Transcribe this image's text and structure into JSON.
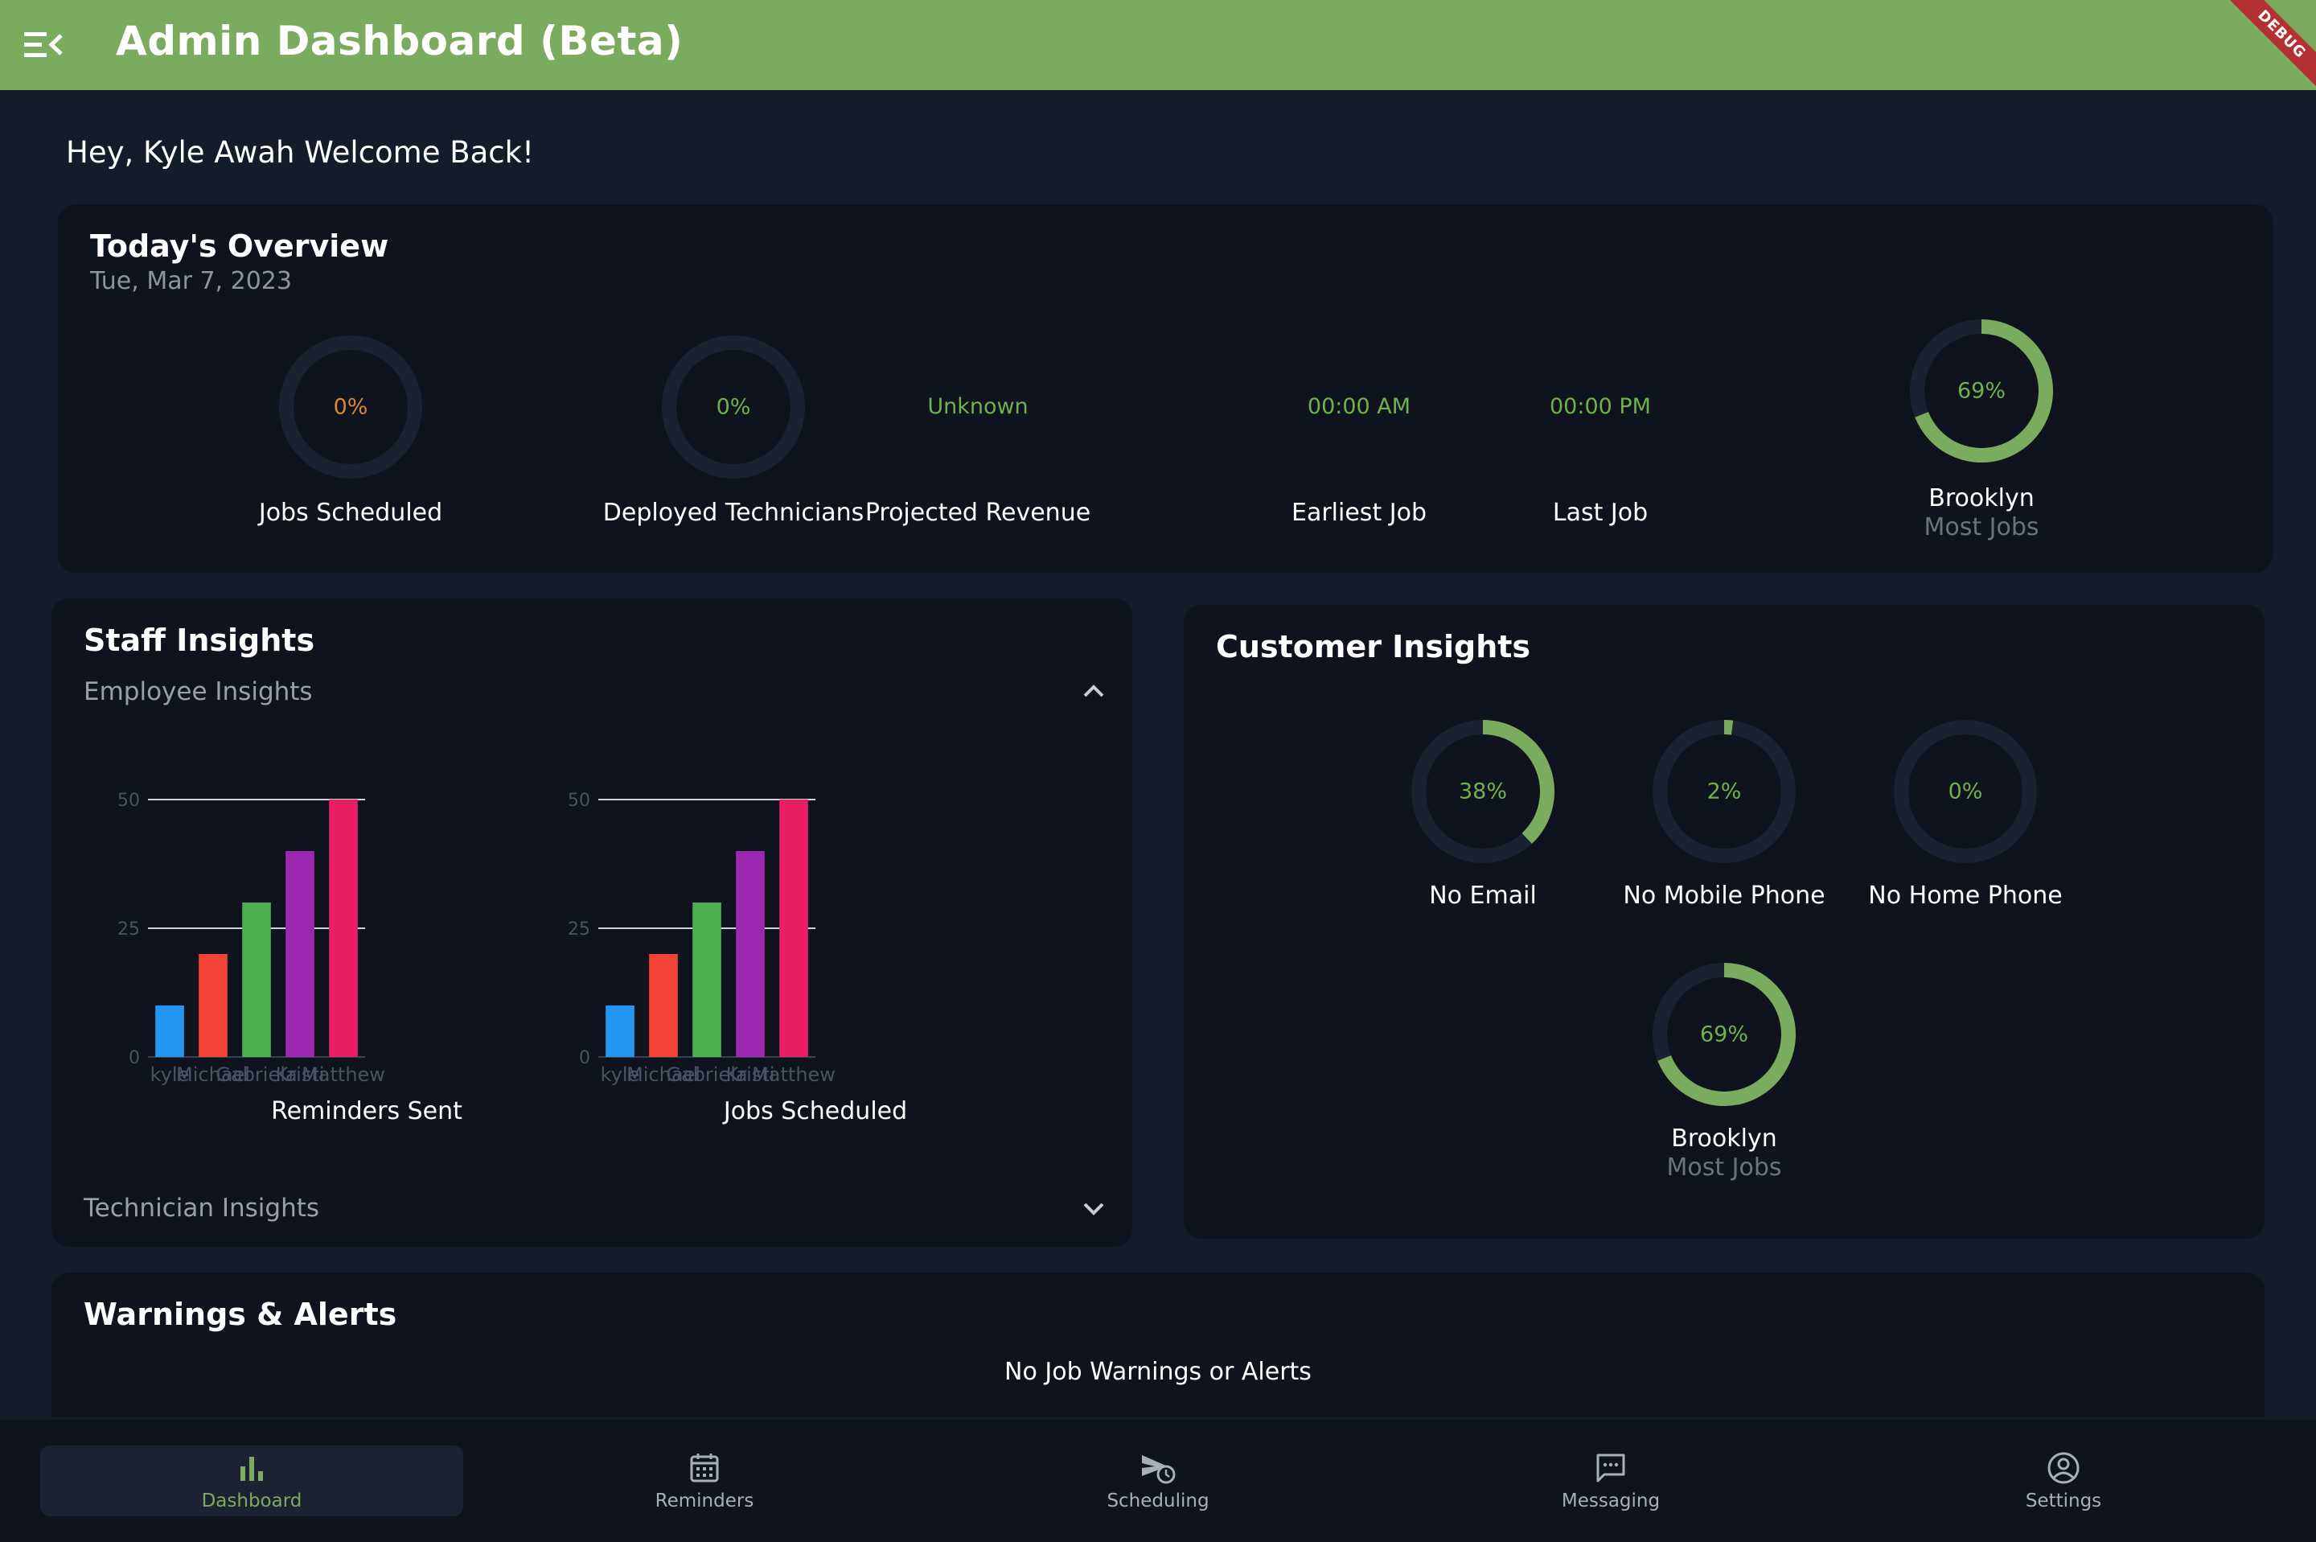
{
  "app": {
    "title": "Admin Dashboard (Beta)",
    "debug_label": "DEBUG"
  },
  "greeting": "Hey, Kyle Awah Welcome Back!",
  "overview": {
    "title": "Today's Overview",
    "date": "Tue, Mar 7, 2023",
    "jobs_scheduled": {
      "value": "0%",
      "label": "Jobs Scheduled",
      "color": "#d98a2e",
      "fraction": 0
    },
    "deployed_technicians": {
      "value": "0%",
      "label": "Deployed Technicians",
      "fraction": 0
    },
    "projected_revenue": {
      "value": "Unknown",
      "label": "Projected Revenue"
    },
    "earliest_job": {
      "value": "00:00 AM",
      "label": "Earliest Job"
    },
    "last_job": {
      "value": "00:00 PM",
      "label": "Last Job"
    },
    "top_location": {
      "value": "69%",
      "name": "Brooklyn",
      "caption": "Most Jobs",
      "fraction": 0.69
    }
  },
  "staff": {
    "title": "Staff Insights",
    "employee_section": "Employee Insights",
    "technician_section": "Technician Insights"
  },
  "chart_data": [
    {
      "type": "bar",
      "title": "Reminders Sent",
      "categories": [
        "kyle",
        "Michael",
        "Gabriela",
        "Kristi",
        "Matthew"
      ],
      "values": [
        10,
        20,
        30,
        40,
        50
      ],
      "colors": [
        "#2196f3",
        "#f44336",
        "#4caf50",
        "#9c27b0",
        "#e91e63"
      ],
      "yticks": [
        "0",
        "25",
        "50"
      ],
      "ylim": [
        0,
        50
      ],
      "grid": true
    },
    {
      "type": "bar",
      "title": "Jobs Scheduled",
      "categories": [
        "kyle",
        "Michael",
        "Gabriela",
        "Kristi",
        "Matthew"
      ],
      "values": [
        10,
        20,
        30,
        40,
        50
      ],
      "colors": [
        "#2196f3",
        "#f44336",
        "#4caf50",
        "#9c27b0",
        "#e91e63"
      ],
      "yticks": [
        "0",
        "25",
        "50"
      ],
      "ylim": [
        0,
        50
      ],
      "grid": true
    }
  ],
  "customer": {
    "title": "Customer Insights",
    "no_email": {
      "value": "38%",
      "label": "No Email",
      "fraction": 0.38
    },
    "no_mobile": {
      "value": "2%",
      "label": "No Mobile Phone",
      "fraction": 0.02
    },
    "no_home": {
      "value": "0%",
      "label": "No Home Phone",
      "fraction": 0
    },
    "top_location": {
      "value": "69%",
      "name": "Brooklyn",
      "caption": "Most Jobs",
      "fraction": 0.69
    }
  },
  "warnings": {
    "title": "Warnings & Alerts",
    "message": "No Job Warnings or Alerts"
  },
  "nav": {
    "items": [
      {
        "label": "Dashboard",
        "icon": "bar-chart-icon",
        "active": true
      },
      {
        "label": "Reminders",
        "icon": "calendar-icon"
      },
      {
        "label": "Scheduling",
        "icon": "send-clock-icon"
      },
      {
        "label": "Messaging",
        "icon": "chat-icon"
      },
      {
        "label": "Settings",
        "icon": "account-circle-icon"
      }
    ]
  },
  "colors": {
    "accent": "#7bab5e",
    "green_text": "#6fb24c",
    "background": "#141c2b",
    "card": "#0e131e",
    "ring_track": "#1a2232"
  }
}
